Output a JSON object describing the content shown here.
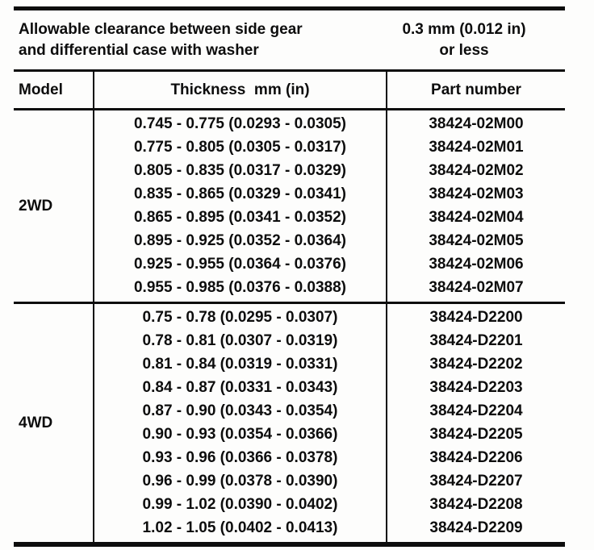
{
  "page": {
    "background": "#fdfdfc",
    "ink_color": "#0d0d0d"
  },
  "clearance_spec": {
    "label_line1": "Allowable clearance between side gear",
    "label_line2": "and differential case with washer",
    "value_line1": "0.3 mm (0.012 in)",
    "value_line2": "or less"
  },
  "columns": {
    "model": "Model",
    "thickness": "Thickness  mm (in)",
    "part_number": "Part number"
  },
  "sections": [
    {
      "model": "2WD",
      "rows": [
        {
          "thickness": "0.745 - 0.775 (0.0293 - 0.0305)",
          "part_number": "38424-02M00"
        },
        {
          "thickness": "0.775 - 0.805 (0.0305 - 0.0317)",
          "part_number": "38424-02M01"
        },
        {
          "thickness": "0.805 - 0.835 (0.0317 - 0.0329)",
          "part_number": "38424-02M02"
        },
        {
          "thickness": "0.835 - 0.865 (0.0329 - 0.0341)",
          "part_number": "38424-02M03"
        },
        {
          "thickness": "0.865 - 0.895 (0.0341 - 0.0352)",
          "part_number": "38424-02M04"
        },
        {
          "thickness": "0.895 - 0.925 (0.0352 - 0.0364)",
          "part_number": "38424-02M05"
        },
        {
          "thickness": "0.925 - 0.955 (0.0364 - 0.0376)",
          "part_number": "38424-02M06"
        },
        {
          "thickness": "0.955 - 0.985 (0.0376 - 0.0388)",
          "part_number": "38424-02M07"
        }
      ]
    },
    {
      "model": "4WD",
      "rows": [
        {
          "thickness": "0.75 - 0.78 (0.0295 - 0.0307)",
          "part_number": "38424-D2200"
        },
        {
          "thickness": "0.78 - 0.81 (0.0307 - 0.0319)",
          "part_number": "38424-D2201"
        },
        {
          "thickness": "0.81 - 0.84 (0.0319 - 0.0331)",
          "part_number": "38424-D2202"
        },
        {
          "thickness": "0.84 - 0.87 (0.0331 - 0.0343)",
          "part_number": "38424-D2203"
        },
        {
          "thickness": "0.87 - 0.90 (0.0343 - 0.0354)",
          "part_number": "38424-D2204"
        },
        {
          "thickness": "0.90 - 0.93 (0.0354 - 0.0366)",
          "part_number": "38424-D2205"
        },
        {
          "thickness": "0.93 - 0.96 (0.0366 - 0.0378)",
          "part_number": "38424-D2206"
        },
        {
          "thickness": "0.96 - 0.99 (0.0378 - 0.0390)",
          "part_number": "38424-D2207"
        },
        {
          "thickness": "0.99 - 1.02 (0.0390 - 0.0402)",
          "part_number": "38424-D2208"
        },
        {
          "thickness": "1.02 - 1.05 (0.0402 - 0.0413)",
          "part_number": "38424-D2209"
        }
      ]
    }
  ]
}
